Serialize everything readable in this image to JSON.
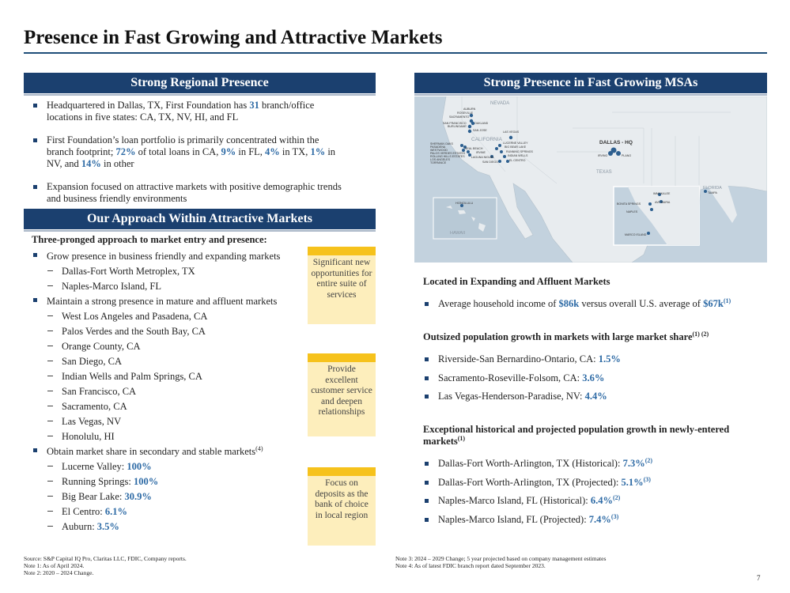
{
  "title": "Presence in Fast Growing and Attractive Markets",
  "regional": {
    "header": "Strong Regional Presence",
    "bullets": [
      {
        "parts": [
          "Headquartered in Dallas, TX, First Foundation has ",
          "31",
          " branch/office locations in five states: CA, TX, NV, HI, and FL"
        ]
      },
      {
        "parts": [
          "First Foundation’s loan portfolio is primarily concentrated within the branch footprint; ",
          "72%",
          " of total loans in CA, ",
          "9%",
          " in FL, ",
          "4%",
          " in TX, ",
          "1%",
          " in NV, and ",
          "14%",
          " in other"
        ]
      },
      {
        "parts": [
          "Expansion focused on attractive markets with positive demographic trends and business friendly environments"
        ]
      }
    ]
  },
  "approach": {
    "header": "Our Approach Within Attractive Markets",
    "intro": "Three-pronged approach to market entry and presence:",
    "groups": [
      {
        "text": "Grow presence in business friendly and expanding markets",
        "items": [
          {
            "parts": [
              "Dallas-Fort Worth Metroplex, TX"
            ]
          },
          {
            "parts": [
              "Naples-Marco Island, FL"
            ]
          }
        ]
      },
      {
        "text": "Maintain a strong presence in mature and affluent markets",
        "items": [
          {
            "parts": [
              "West Los Angeles and Pasadena, CA"
            ]
          },
          {
            "parts": [
              "Palos Verdes and the South Bay, CA"
            ]
          },
          {
            "parts": [
              "Orange County, CA"
            ]
          },
          {
            "parts": [
              "San Diego, CA"
            ]
          },
          {
            "parts": [
              "Indian Wells and Palm Springs, CA"
            ]
          },
          {
            "parts": [
              "San Francisco, CA"
            ]
          },
          {
            "parts": [
              "Sacramento, CA"
            ]
          },
          {
            "parts": [
              "Las Vegas, NV"
            ]
          },
          {
            "parts": [
              "Honolulu, HI"
            ]
          }
        ]
      },
      {
        "text": "Obtain market share in secondary and stable markets",
        "sup": "(4)",
        "items": [
          {
            "parts": [
              "Lucerne Valley: ",
              "100%"
            ]
          },
          {
            "parts": [
              "Running Springs: ",
              "100%"
            ]
          },
          {
            "parts": [
              "Big Bear Lake: ",
              "30.9%"
            ]
          },
          {
            "parts": [
              "El Centro: ",
              "6.1%"
            ]
          },
          {
            "parts": [
              "Auburn: ",
              "3.5%"
            ]
          }
        ]
      }
    ],
    "callouts": [
      "Significant new opportunities for entire suite of services",
      "Provide excellent customer service and deepen relationships",
      "Focus on deposits as the bank of choice in local region"
    ]
  },
  "msa": {
    "header": "Strong Presence in Fast Growing MSAs",
    "map_labels": [
      "NEVADA",
      "CALIFORNIA",
      "TEXAS",
      "FLORIDA",
      "HAWAII",
      "DALLAS - HQ",
      "HONOLULU",
      "AUBURN",
      "ROSEVILLE",
      "SACRAMENTO",
      "SAN FRANCISCO",
      "OAKLAND",
      "BURLINGAME",
      "SAN JOSE",
      "LAS VEGAS",
      "SHERMAN OAKS",
      "PASADENA",
      "WESTWOOD",
      "PALOS VERDES ESTATES",
      "ROLLING HILLS ESTATES",
      "LOS ANGELES",
      "TORRANCE",
      "SEAL BEACH",
      "IRVINE",
      "LAGUNA NIGUEL",
      "SAN DIEGO",
      "LUCERNE VALLEY",
      "BIG BEAR LAKE",
      "RUNNING SPRINGS",
      "INDIAN WELLS",
      "EL CENTRO",
      "IRVING",
      "PLANO",
      "TAMPA",
      "IMMOKALEE",
      "AVE MARIA",
      "BONITA SPRINGS",
      "NAPLES",
      "MARCO ISLAND"
    ],
    "sections": [
      {
        "heading": "Located in Expanding and Affluent Markets",
        "bullets": [
          {
            "parts": [
              "Average household income of ",
              "$86k",
              " versus overall U.S. average of ",
              "$67k"
            ],
            "sup": "(1)"
          }
        ]
      },
      {
        "heading": "Outsized population growth in markets with large market share",
        "sup": "(1) (2)",
        "bullets": [
          {
            "parts": [
              "Riverside-San Bernardino-Ontario, CA: ",
              "1.5%"
            ]
          },
          {
            "parts": [
              "Sacramento-Roseville-Folsom, CA: ",
              "3.6%"
            ]
          },
          {
            "parts": [
              "Las Vegas-Henderson-Paradise, NV: ",
              "4.4%"
            ]
          }
        ]
      },
      {
        "heading": "Exceptional historical and projected population growth in newly-entered markets",
        "sup": "(1)",
        "bullets": [
          {
            "parts": [
              "Dallas-Fort Worth-Arlington, TX (Historical): ",
              "7.3%"
            ],
            "sup": "(2)"
          },
          {
            "parts": [
              "Dallas-Fort Worth-Arlington, TX (Projected): ",
              "5.1%"
            ],
            "sup": "(3)"
          },
          {
            "parts": [
              "Naples-Marco Island, FL (Historical): ",
              "6.4%"
            ],
            "sup": "(2)"
          },
          {
            "parts": [
              "Naples-Marco Island, FL (Projected): ",
              "7.4%"
            ],
            "sup": "(3)"
          }
        ]
      }
    ]
  },
  "footnotes": {
    "left": [
      "Source: S&P Capital IQ Pro, Claritas LLC, FDIC, Company reports.",
      "Note 1: As of April 2024.",
      "Note 2: 2020 – 2024 Change."
    ],
    "right": [
      "Note 3: 2024 – 2029 Change; 5 year projected based on company management estimates",
      "Note 4: As of latest FDIC branch report dated September 2023."
    ]
  },
  "page_number": 7
}
